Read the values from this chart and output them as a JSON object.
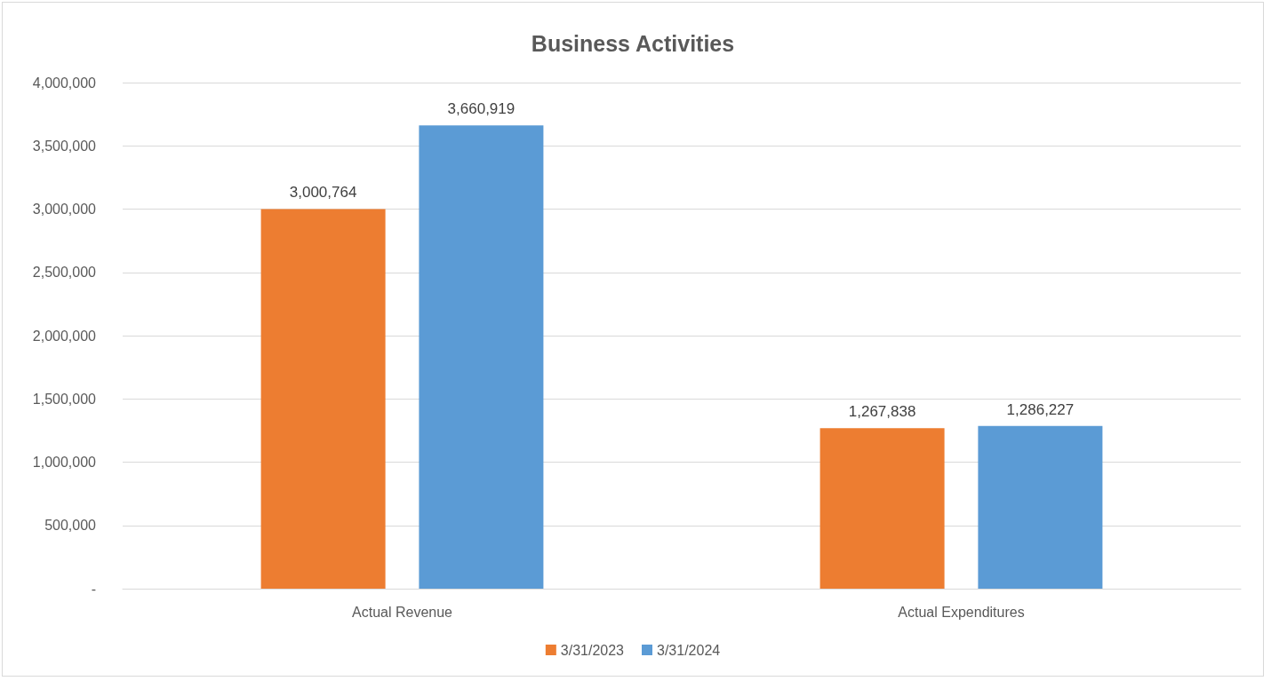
{
  "chart_data": {
    "type": "bar",
    "title": "Business Activities",
    "categories": [
      "Actual Revenue",
      "Actual Expenditures"
    ],
    "series": [
      {
        "name": "3/31/2023",
        "color": "#ed7d31",
        "values": [
          3000764,
          1267838
        ],
        "value_labels": [
          "3,000,764",
          "1,267,838"
        ]
      },
      {
        "name": "3/31/2024",
        "color": "#5b9bd5",
        "values": [
          3660919,
          1286227
        ],
        "value_labels": [
          "3,660,919",
          "1,286,227"
        ]
      }
    ],
    "ylim": [
      0,
      4000000
    ],
    "yticks": [
      {
        "value": 0,
        "label": "-"
      },
      {
        "value": 500000,
        "label": "500,000"
      },
      {
        "value": 1000000,
        "label": "1,000,000"
      },
      {
        "value": 1500000,
        "label": "1,500,000"
      },
      {
        "value": 2000000,
        "label": "2,000,000"
      },
      {
        "value": 2500000,
        "label": "2,500,000"
      },
      {
        "value": 3000000,
        "label": "3,000,000"
      },
      {
        "value": 3500000,
        "label": "3,500,000"
      },
      {
        "value": 4000000,
        "label": "4,000,000"
      }
    ],
    "grid": "y",
    "legend": "bottom"
  }
}
